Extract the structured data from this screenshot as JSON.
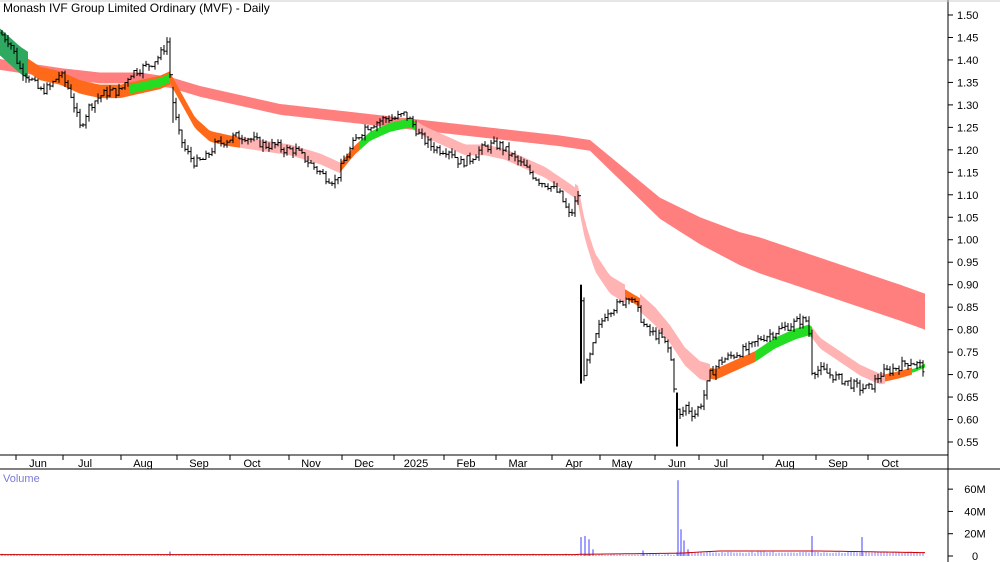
{
  "title": "Monash IVF Group Limited Ordinary (MVF) - Daily",
  "chart_data": [
    {
      "type": "line",
      "title": "Monash IVF Group Limited Ordinary (MVF) - Daily",
      "x_ticks": [
        "Jun",
        "Jul",
        "Aug",
        "Sep",
        "Oct",
        "Nov",
        "Dec",
        "2025",
        "Feb",
        "Mar",
        "Apr",
        "May",
        "Jun",
        "Jul",
        "Aug",
        "Sep",
        "Oct"
      ],
      "y_ticks": [
        1.5,
        1.45,
        1.4,
        1.35,
        1.3,
        1.25,
        1.2,
        1.15,
        1.1,
        1.05,
        1.0,
        0.95,
        0.9,
        0.85,
        0.8,
        0.75,
        0.7,
        0.65,
        0.6,
        0.55
      ],
      "ylim": [
        0.5,
        1.52
      ],
      "series": [
        {
          "points": [
            [
              0,
              1.46
            ],
            [
              10,
              1.44
            ],
            [
              20,
              1.38
            ],
            [
              30,
              1.36
            ],
            [
              40,
              1.33
            ],
            [
              50,
              1.34
            ],
            [
              60,
              1.37
            ],
            [
              70,
              1.33
            ],
            [
              80,
              1.25
            ],
            [
              90,
              1.3
            ],
            [
              100,
              1.32
            ],
            [
              110,
              1.33
            ],
            [
              120,
              1.33
            ],
            [
              130,
              1.37
            ],
            [
              140,
              1.38
            ],
            [
              150,
              1.39
            ],
            [
              160,
              1.41
            ],
            [
              167,
              1.44
            ],
            [
              172,
              1.32
            ],
            [
              178,
              1.24
            ],
            [
              185,
              1.2
            ],
            [
              195,
              1.17
            ],
            [
              205,
              1.18
            ],
            [
              215,
              1.21
            ],
            [
              225,
              1.22
            ],
            [
              235,
              1.23
            ],
            [
              245,
              1.23
            ],
            [
              255,
              1.22
            ],
            [
              265,
              1.21
            ],
            [
              275,
              1.21
            ],
            [
              285,
              1.2
            ],
            [
              295,
              1.2
            ],
            [
              305,
              1.18
            ],
            [
              315,
              1.16
            ],
            [
              325,
              1.14
            ],
            [
              335,
              1.13
            ],
            [
              345,
              1.18
            ],
            [
              355,
              1.22
            ],
            [
              365,
              1.25
            ],
            [
              375,
              1.26
            ],
            [
              385,
              1.27
            ],
            [
              395,
              1.27
            ],
            [
              405,
              1.28
            ],
            [
              412,
              1.26
            ],
            [
              420,
              1.23
            ],
            [
              430,
              1.21
            ],
            [
              440,
              1.2
            ],
            [
              450,
              1.2
            ],
            [
              460,
              1.17
            ],
            [
              470,
              1.18
            ],
            [
              480,
              1.2
            ],
            [
              490,
              1.21
            ],
            [
              500,
              1.21
            ],
            [
              510,
              1.19
            ],
            [
              520,
              1.17
            ],
            [
              530,
              1.15
            ],
            [
              540,
              1.13
            ],
            [
              550,
              1.12
            ],
            [
              560,
              1.1
            ],
            [
              570,
              1.05
            ],
            [
              578,
              1.1
            ],
            [
              583,
              0.7
            ],
            [
              590,
              0.74
            ],
            [
              598,
              0.8
            ],
            [
              606,
              0.84
            ],
            [
              614,
              0.85
            ],
            [
              622,
              0.86
            ],
            [
              630,
              0.88
            ],
            [
              638,
              0.84
            ],
            [
              646,
              0.8
            ],
            [
              654,
              0.79
            ],
            [
              662,
              0.78
            ],
            [
              670,
              0.75
            ],
            [
              678,
              0.6
            ],
            [
              686,
              0.63
            ],
            [
              694,
              0.61
            ],
            [
              702,
              0.64
            ],
            [
              710,
              0.7
            ],
            [
              720,
              0.73
            ],
            [
              730,
              0.74
            ],
            [
              740,
              0.75
            ],
            [
              750,
              0.76
            ],
            [
              760,
              0.78
            ],
            [
              770,
              0.79
            ],
            [
              780,
              0.8
            ],
            [
              790,
              0.81
            ],
            [
              800,
              0.82
            ],
            [
              808,
              0.82
            ],
            [
              812,
              0.71
            ],
            [
              820,
              0.71
            ],
            [
              830,
              0.7
            ],
            [
              840,
              0.69
            ],
            [
              850,
              0.68
            ],
            [
              860,
              0.67
            ],
            [
              870,
              0.67
            ],
            [
              880,
              0.7
            ],
            [
              890,
              0.71
            ],
            [
              900,
              0.72
            ],
            [
              910,
              0.73
            ],
            [
              920,
              0.72
            ],
            [
              925,
              0.71
            ]
          ]
        },
        {
          "points": [
            [
              0,
              1.44
            ],
            [
              20,
              1.4
            ],
            [
              40,
              1.37
            ],
            [
              60,
              1.36
            ],
            [
              80,
              1.34
            ],
            [
              100,
              1.33
            ],
            [
              120,
              1.33
            ],
            [
              140,
              1.34
            ],
            [
              160,
              1.35
            ],
            [
              170,
              1.36
            ],
            [
              180,
              1.32
            ],
            [
              195,
              1.26
            ],
            [
              210,
              1.23
            ],
            [
              230,
              1.22
            ],
            [
              260,
              1.21
            ],
            [
              290,
              1.2
            ],
            [
              320,
              1.18
            ],
            [
              340,
              1.16
            ],
            [
              355,
              1.2
            ],
            [
              370,
              1.23
            ],
            [
              390,
              1.25
            ],
            [
              410,
              1.26
            ],
            [
              425,
              1.24
            ],
            [
              445,
              1.22
            ],
            [
              465,
              1.2
            ],
            [
              485,
              1.2
            ],
            [
              505,
              1.19
            ],
            [
              525,
              1.17
            ],
            [
              545,
              1.15
            ],
            [
              565,
              1.12
            ],
            [
              578,
              1.1
            ],
            [
              585,
              1.02
            ],
            [
              595,
              0.95
            ],
            [
              610,
              0.9
            ],
            [
              625,
              0.88
            ],
            [
              640,
              0.86
            ],
            [
              655,
              0.83
            ],
            [
              670,
              0.79
            ],
            [
              685,
              0.74
            ],
            [
              700,
              0.71
            ],
            [
              715,
              0.7
            ],
            [
              735,
              0.72
            ],
            [
              755,
              0.74
            ],
            [
              775,
              0.77
            ],
            [
              795,
              0.79
            ],
            [
              810,
              0.8
            ],
            [
              820,
              0.77
            ],
            [
              840,
              0.74
            ],
            [
              860,
              0.71
            ],
            [
              880,
              0.69
            ],
            [
              900,
              0.7
            ],
            [
              915,
              0.71
            ],
            [
              925,
              0.72
            ]
          ]
        },
        {
          "points": [
            [
              0,
              1.39
            ],
            [
              30,
              1.38
            ],
            [
              60,
              1.37
            ],
            [
              100,
              1.36
            ],
            [
              140,
              1.36
            ],
            [
              170,
              1.35
            ],
            [
              200,
              1.33
            ],
            [
              240,
              1.31
            ],
            [
              280,
              1.29
            ],
            [
              320,
              1.28
            ],
            [
              360,
              1.27
            ],
            [
              400,
              1.26
            ],
            [
              440,
              1.25
            ],
            [
              480,
              1.24
            ],
            [
              520,
              1.23
            ],
            [
              560,
              1.22
            ],
            [
              590,
              1.21
            ],
            [
              620,
              1.15
            ],
            [
              660,
              1.07
            ],
            [
              700,
              1.02
            ],
            [
              740,
              0.98
            ],
            [
              780,
              0.95
            ],
            [
              820,
              0.92
            ],
            [
              860,
              0.89
            ],
            [
              900,
              0.86
            ],
            [
              925,
              0.84
            ]
          ]
        }
      ]
    },
    {
      "type": "bar",
      "title": "Volume",
      "y_ticks": [
        "60M",
        "40M",
        "20M",
        "0"
      ],
      "ylim": [
        0,
        70
      ],
      "spikes": [
        [
          170,
          4
        ],
        [
          581,
          17
        ],
        [
          585,
          18
        ],
        [
          589,
          15
        ],
        [
          593,
          6
        ],
        [
          643,
          5
        ],
        [
          678,
          68
        ],
        [
          681,
          24
        ],
        [
          684,
          14
        ],
        [
          688,
          6
        ],
        [
          812,
          18
        ],
        [
          862,
          17
        ]
      ],
      "baseline_volume": 1.5
    }
  ],
  "colors": {
    "price_bar": "#000000",
    "band_red": "#ff7f7f",
    "band_pink": "#ffb3b3",
    "band_orange": "#ff6a1a",
    "band_green": "#22dd22",
    "band_darkgreen": "#2fa860",
    "volume_bar": "#8080ff",
    "volume_line": "#cc0000",
    "grid": "#000000",
    "volume_title": "#7b7bd6"
  }
}
